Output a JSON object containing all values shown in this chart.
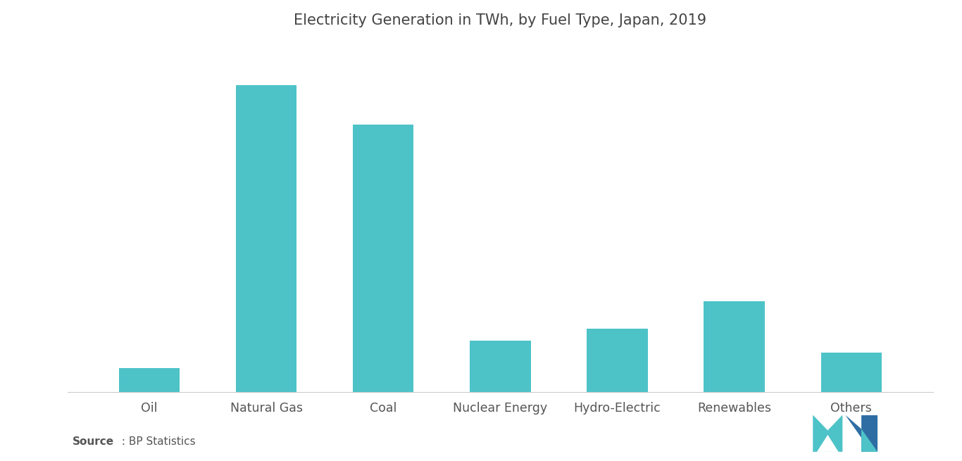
{
  "title": "Electricity Generation in TWh, by Fuel Type, Japan, 2019",
  "categories": [
    "Oil",
    "Natural Gas",
    "Coal",
    "Nuclear Energy",
    "Hydro-Electric",
    "Renewables",
    "Others"
  ],
  "values": [
    30,
    390,
    340,
    65,
    80,
    115,
    50
  ],
  "bar_color": "#4DC3C8",
  "background_color": "#ffffff",
  "title_fontsize": 15,
  "tick_fontsize": 12.5,
  "source_bold": "Source",
  "source_rest": " : BP Statistics",
  "ylim": [
    0,
    440
  ],
  "logo_teal": "#4DC3C8",
  "logo_blue": "#2E6DA4"
}
